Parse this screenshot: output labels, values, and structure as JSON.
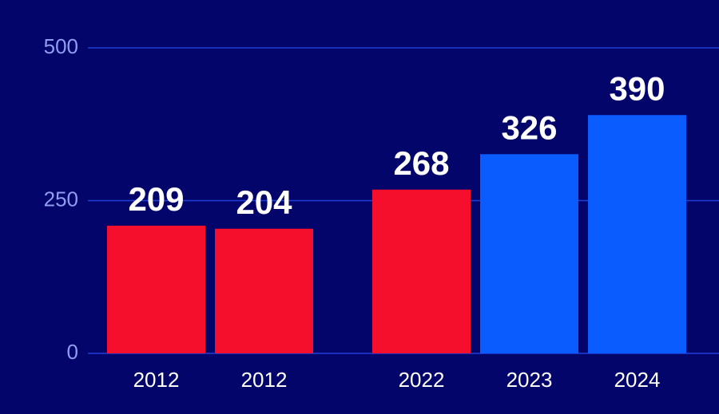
{
  "chart_data": {
    "type": "bar",
    "categories": [
      "2012",
      "2012",
      "2022",
      "2023",
      "2024"
    ],
    "values": [
      209,
      204,
      268,
      326,
      390
    ],
    "colors": [
      "#f50f2d",
      "#f50f2d",
      "#f50f2d",
      "#0a5cff",
      "#0a5cff"
    ],
    "ylim": [
      0,
      500
    ],
    "yticks": [
      0,
      250,
      500
    ],
    "grid": true
  }
}
